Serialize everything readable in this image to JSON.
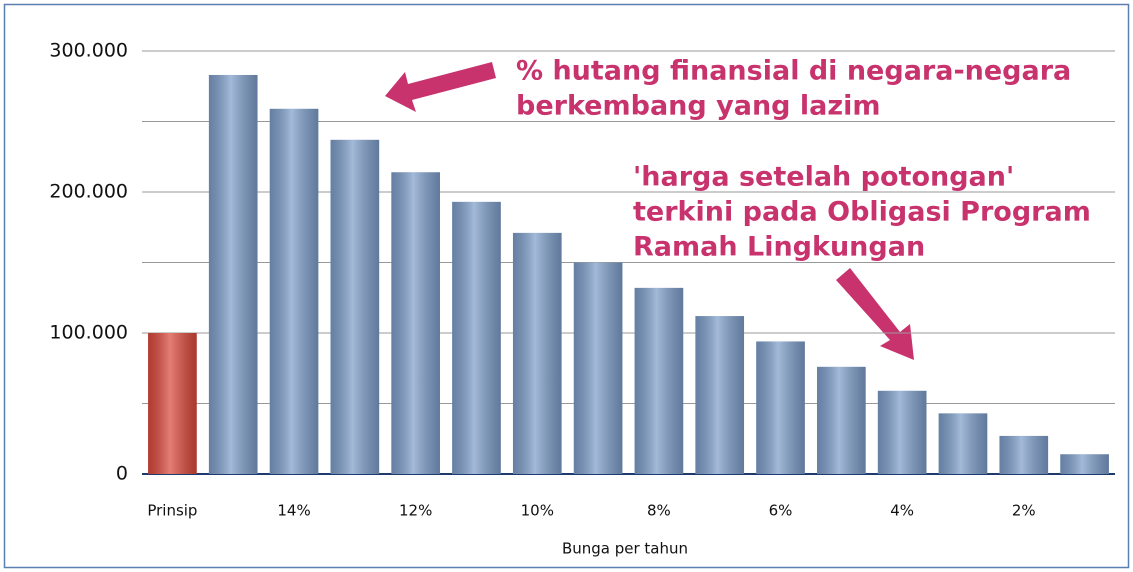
{
  "chart_data": {
    "type": "bar",
    "x_label": "Bunga per tahun",
    "categories": [
      "Prinsip",
      null,
      "14%",
      null,
      "12%",
      null,
      "10%",
      null,
      "8%",
      null,
      "6%",
      null,
      "4%",
      null,
      "2%",
      null
    ],
    "values": [
      100000,
      283000,
      259000,
      237000,
      214000,
      193000,
      171000,
      150000,
      132000,
      112000,
      94000,
      76000,
      59000,
      43000,
      27000,
      14000
    ],
    "colors": [
      "#d9473a",
      "#7c9cc8",
      "#7c9cc8",
      "#7c9cc8",
      "#7c9cc8",
      "#7c9cc8",
      "#7c9cc8",
      "#7c9cc8",
      "#7c9cc8",
      "#7c9cc8",
      "#7c9cc8",
      "#7c9cc8",
      "#7c9cc8",
      "#7c9cc8",
      "#7c9cc8",
      "#7c9cc8"
    ],
    "ylim": [
      0,
      300000
    ],
    "yticks": [
      {
        "value": 0,
        "label": "0"
      },
      {
        "value": 100000,
        "label": "100.000"
      },
      {
        "value": 200000,
        "label": "200.000"
      },
      {
        "value": 300000,
        "label": "300.000"
      }
    ],
    "minor_yticks": [
      50000,
      150000,
      250000
    ],
    "grid": true,
    "annotations": [
      {
        "lines": [
          "% hutang finansial di negara-negara",
          "berkembang yang lazim"
        ]
      },
      {
        "lines": [
          "'harga setelah potongan'",
          "terkini pada Obligasi Program",
          "Ramah Lingkungan"
        ]
      }
    ]
  }
}
